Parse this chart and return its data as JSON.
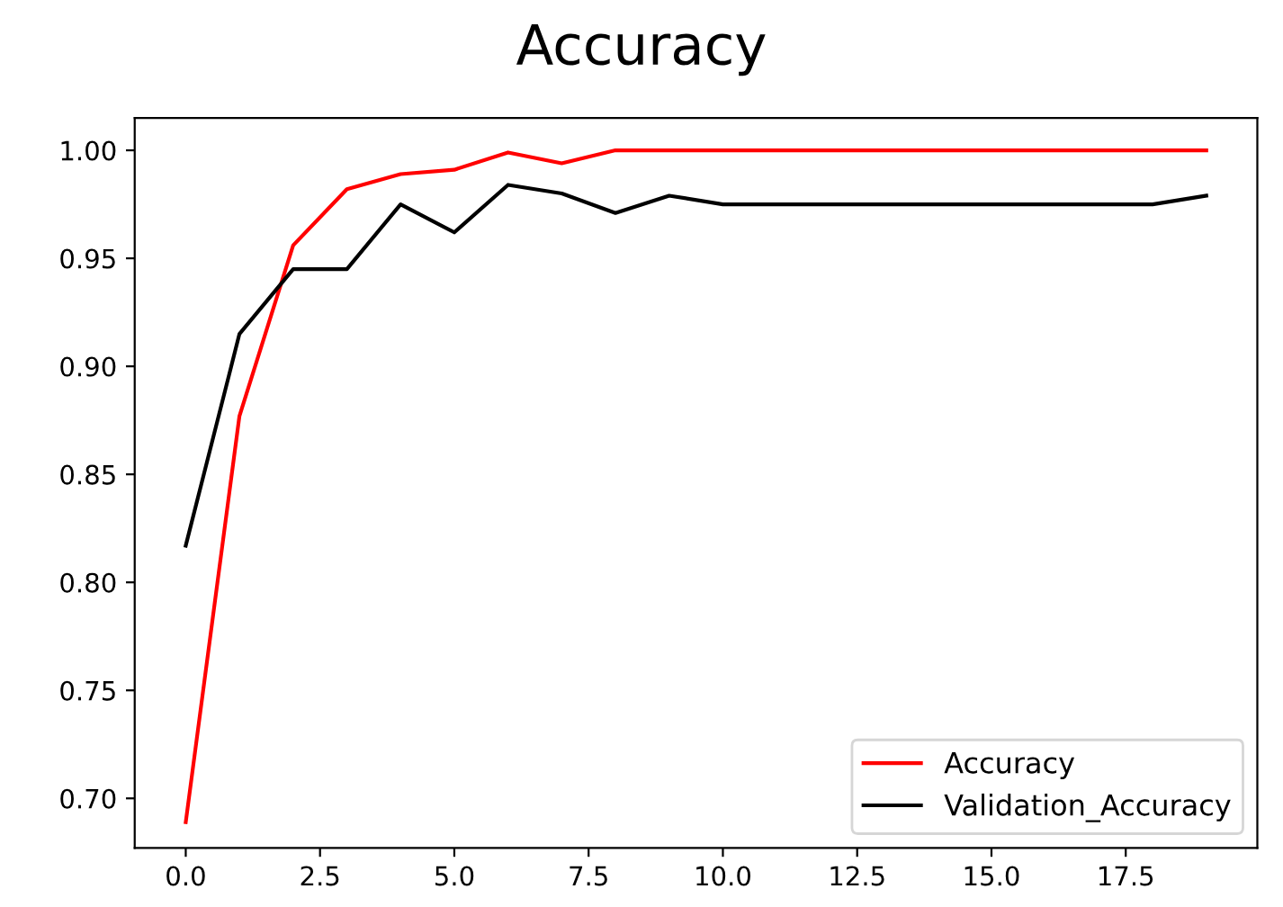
{
  "chart_data": {
    "type": "line",
    "title": "Accuracy",
    "x": [
      0,
      1,
      2,
      3,
      4,
      5,
      6,
      7,
      8,
      9,
      10,
      11,
      12,
      13,
      14,
      15,
      16,
      17,
      18,
      19
    ],
    "series": [
      {
        "name": "Accuracy",
        "color": "#ff0000",
        "values": [
          0.689,
          0.877,
          0.956,
          0.982,
          0.989,
          0.991,
          0.999,
          0.994,
          1.0,
          1.0,
          1.0,
          1.0,
          1.0,
          1.0,
          1.0,
          1.0,
          1.0,
          1.0,
          1.0,
          1.0
        ]
      },
      {
        "name": "Validation_Accuracy",
        "color": "#000000",
        "values": [
          0.817,
          0.915,
          0.945,
          0.945,
          0.975,
          0.962,
          0.984,
          0.98,
          0.971,
          0.979,
          0.975,
          0.975,
          0.975,
          0.975,
          0.975,
          0.975,
          0.975,
          0.975,
          0.975,
          0.979
        ]
      }
    ],
    "xlim": [
      -0.95,
      19.95
    ],
    "ylim": [
      0.677,
      1.015
    ],
    "xticks": [
      {
        "value": 0,
        "label": "0.0"
      },
      {
        "value": 2.5,
        "label": "2.5"
      },
      {
        "value": 5,
        "label": "5.0"
      },
      {
        "value": 7.5,
        "label": "7.5"
      },
      {
        "value": 10,
        "label": "10.0"
      },
      {
        "value": 12.5,
        "label": "12.5"
      },
      {
        "value": 15,
        "label": "15.0"
      },
      {
        "value": 17.5,
        "label": "17.5"
      }
    ],
    "yticks": [
      {
        "value": 0.7,
        "label": "0.70"
      },
      {
        "value": 0.75,
        "label": "0.75"
      },
      {
        "value": 0.8,
        "label": "0.80"
      },
      {
        "value": 0.85,
        "label": "0.85"
      },
      {
        "value": 0.9,
        "label": "0.90"
      },
      {
        "value": 0.95,
        "label": "0.95"
      },
      {
        "value": 1.0,
        "label": "1.00"
      }
    ],
    "legend": "bottom right",
    "grid": false,
    "marker": "none",
    "line_style": "solid"
  }
}
